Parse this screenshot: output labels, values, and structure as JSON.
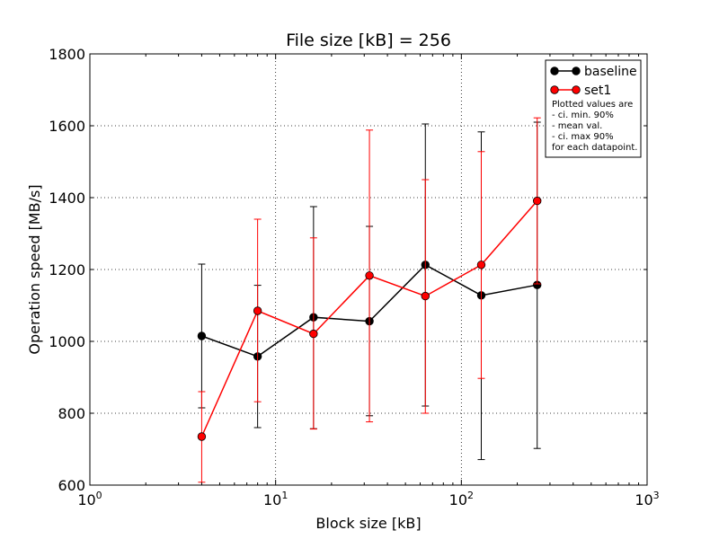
{
  "chart_data": {
    "type": "line",
    "title": "File size [kB] = 256",
    "xlabel": "Block size [kB]",
    "ylabel": "Operation speed [MB/s]",
    "xscale": "log",
    "xlim": [
      1,
      1000
    ],
    "ylim": [
      600,
      1800
    ],
    "x_ticks": [
      {
        "base": "10",
        "exp": "0",
        "value": 1
      },
      {
        "base": "10",
        "exp": "1",
        "value": 10
      },
      {
        "base": "10",
        "exp": "2",
        "value": 100
      },
      {
        "base": "10",
        "exp": "3",
        "value": 1000
      }
    ],
    "y_ticks": [
      "600",
      "800",
      "1000",
      "1200",
      "1400",
      "1600",
      "1800"
    ],
    "grid": true,
    "legend_position": "top-right",
    "x": [
      4,
      8,
      16,
      32,
      64,
      128,
      256
    ],
    "series": [
      {
        "name": "baseline",
        "color": "#000000",
        "values": [
          1015,
          958,
          1067,
          1056,
          1213,
          1128,
          1157
        ],
        "ci_min": [
          815,
          760,
          757,
          793,
          820,
          671,
          702
        ],
        "ci_max": [
          1215,
          1156,
          1375,
          1320,
          1605,
          1583,
          1610
        ]
      },
      {
        "name": "set1",
        "color": "#ff0000",
        "values": [
          735,
          1085,
          1021,
          1183,
          1126,
          1213,
          1391
        ],
        "ci_min": [
          608,
          832,
          756,
          776,
          800,
          897,
          1160
        ],
        "ci_max": [
          860,
          1340,
          1288,
          1588,
          1450,
          1528,
          1622
        ]
      }
    ],
    "legend_note": [
      "Plotted values are",
      " - ci. min. 90%",
      " - mean val.",
      " - ci. max 90%",
      "for each datapoint."
    ]
  }
}
